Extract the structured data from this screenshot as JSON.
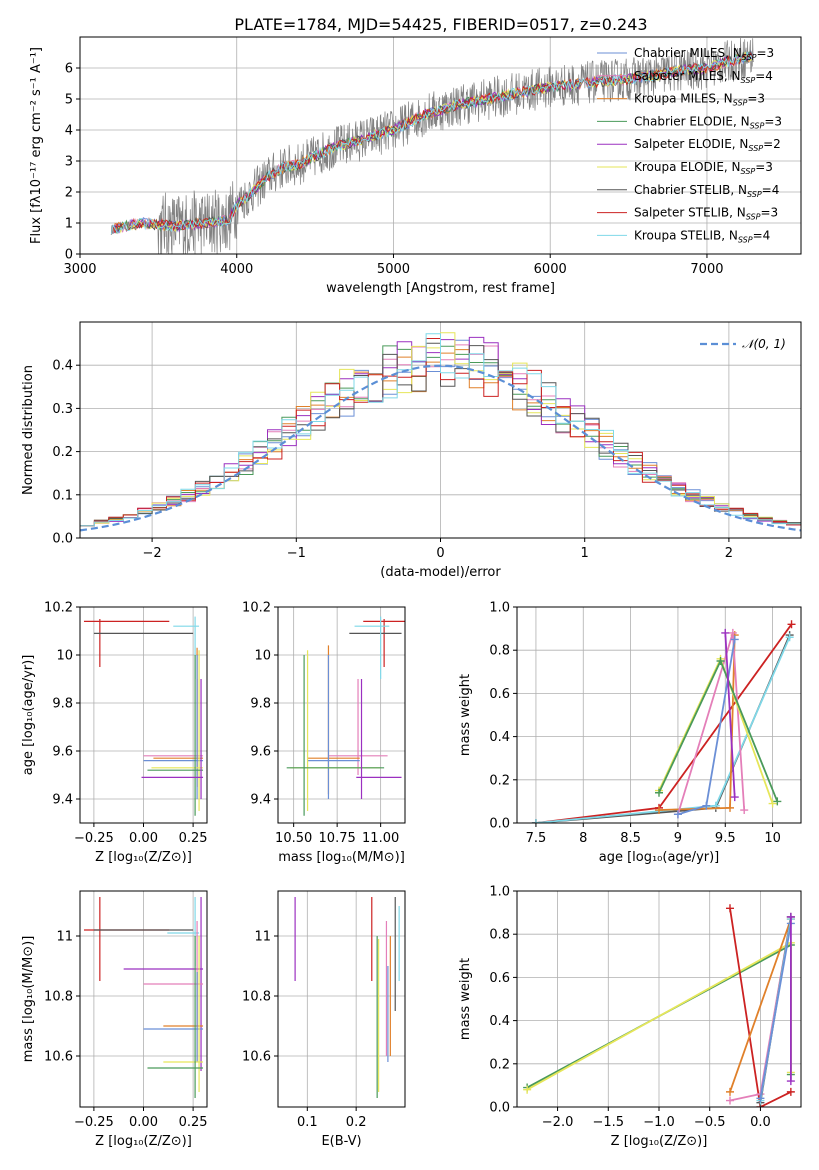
{
  "colors": {
    "chabrier_miles": "#6b8fd6",
    "salpeter_miles": "#e47fb9",
    "kroupa_miles": "#e0802a",
    "chabrier_elodie": "#4a9a5a",
    "salpeter_elodie": "#9b30c0",
    "kroupa_elodie": "#e6e65a",
    "chabrier_stelib": "#555555",
    "salpeter_stelib": "#cc2222",
    "kroupa_stelib": "#7fd8e8",
    "observed": "#808080",
    "normal": "#5b8fd6",
    "grid": "#b0b0b0"
  },
  "chart_data": [
    {
      "type": "line",
      "title": "PLATE=1784, MJD=54425, FIBERID=0517, z=0.243",
      "xlabel": "wavelength [Angstrom, rest frame]",
      "ylabel": "Flux [fλ10⁻¹⁷ erg cm⁻² s⁻¹ A⁻¹]",
      "xlim": [
        3000,
        7600
      ],
      "ylim": [
        0,
        7
      ],
      "xticks": [
        3000,
        4000,
        5000,
        6000,
        7000
      ],
      "yticks": [
        0,
        1,
        2,
        3,
        4,
        5,
        6
      ],
      "legend_position": "right",
      "series": [
        {
          "name": "Chabrier MILES, N",
          "sub": "SSP",
          "suffix": "=3",
          "color_key": "chabrier_miles"
        },
        {
          "name": "Salpeter MILES, N",
          "sub": "SSP",
          "suffix": "=4",
          "color_key": "salpeter_miles"
        },
        {
          "name": "Kroupa MILES, N",
          "sub": "SSP",
          "suffix": "=3",
          "color_key": "kroupa_miles"
        },
        {
          "name": "Chabrier ELODIE, N",
          "sub": "SSP",
          "suffix": "=3",
          "color_key": "chabrier_elodie"
        },
        {
          "name": "Salpeter ELODIE, N",
          "sub": "SSP",
          "suffix": "=2",
          "color_key": "salpeter_elodie"
        },
        {
          "name": "Kroupa ELODIE, N",
          "sub": "SSP",
          "suffix": "=3",
          "color_key": "kroupa_elodie"
        },
        {
          "name": "Chabrier STELIB, N",
          "sub": "SSP",
          "suffix": "=4",
          "color_key": "chabrier_stelib"
        },
        {
          "name": "Salpeter STELIB, N",
          "sub": "SSP",
          "suffix": "=3",
          "color_key": "salpeter_stelib"
        },
        {
          "name": "Kroupa STELIB, N",
          "sub": "SSP",
          "suffix": "=4",
          "color_key": "kroupa_stelib"
        }
      ],
      "continuum_model": {
        "x": [
          3200,
          3400,
          3600,
          3800,
          3950,
          4000,
          4100,
          4200,
          4300,
          4400,
          4600,
          4800,
          5000,
          5200,
          5400,
          5600,
          5800,
          6000,
          6200,
          6400,
          6600,
          6800,
          7000,
          7200,
          7300
        ],
        "y": [
          0.8,
          1.0,
          0.9,
          1.0,
          1.1,
          1.6,
          2.0,
          2.5,
          2.8,
          2.9,
          3.4,
          3.7,
          4.0,
          4.5,
          4.8,
          5.0,
          5.2,
          5.4,
          5.5,
          5.6,
          5.7,
          5.9,
          6.0,
          6.3,
          6.4
        ]
      }
    },
    {
      "type": "histogram",
      "xlabel": "(data-model)/error",
      "ylabel": "Normed distribution",
      "xlim": [
        -2.5,
        2.5
      ],
      "ylim": [
        0,
        0.5
      ],
      "xticks": [
        -2,
        -1,
        0,
        1,
        2
      ],
      "yticks": [
        0.0,
        0.1,
        0.2,
        0.3,
        0.4
      ],
      "bin_width": 0.1,
      "reference_curve": {
        "label": "𝒩(0, 1)",
        "mean": 0,
        "sigma": 1,
        "style": "dashed"
      },
      "legend_position": "top-right"
    },
    {
      "type": "errorbar",
      "xlabel": "Z [log₁₀(Z/Z⊙)]",
      "ylabel": "age [log₁₀(age/yr)]",
      "xlim": [
        -0.32,
        0.32
      ],
      "ylim": [
        9.3,
        10.2
      ],
      "xticks": [
        -0.25,
        0.0,
        0.25
      ],
      "xtick_labels": [
        "−0.25",
        "0.00",
        "0.25"
      ],
      "yticks": [
        9.4,
        9.6,
        9.8,
        10.0,
        10.2
      ],
      "points": [
        {
          "key": "salpeter_stelib",
          "x": -0.22,
          "y": 10.14,
          "xlo": -0.3,
          "xhi": 0.13,
          "ylo": 9.95,
          "yhi": 10.15
        },
        {
          "key": "chabrier_stelib",
          "x": -0.22,
          "y": 10.09,
          "xlo": -0.25,
          "xhi": 0.25,
          "ylo": 10.09,
          "yhi": 10.09
        },
        {
          "key": "kroupa_stelib",
          "x": 0.26,
          "y": 10.12,
          "xlo": 0.15,
          "xhi": 0.28,
          "ylo": 9.9,
          "yhi": 10.16
        },
        {
          "key": "salpeter_miles",
          "x": 0.27,
          "y": 9.58,
          "xlo": 0.0,
          "xhi": 0.3,
          "ylo": 9.5,
          "yhi": 9.9
        },
        {
          "key": "kroupa_miles",
          "x": 0.27,
          "y": 9.57,
          "xlo": 0.05,
          "xhi": 0.3,
          "ylo": 9.45,
          "yhi": 10.03
        },
        {
          "key": "chabrier_miles",
          "x": 0.27,
          "y": 9.56,
          "xlo": 0.0,
          "xhi": 0.3,
          "ylo": 9.4,
          "yhi": 10.0
        },
        {
          "key": "kroupa_elodie",
          "x": 0.28,
          "y": 9.53,
          "xlo": 0.04,
          "xhi": 0.3,
          "ylo": 9.35,
          "yhi": 10.02
        },
        {
          "key": "chabrier_elodie",
          "x": 0.26,
          "y": 9.52,
          "xlo": 0.02,
          "xhi": 0.3,
          "ylo": 9.33,
          "yhi": 10.0
        },
        {
          "key": "salpeter_elodie",
          "x": 0.29,
          "y": 9.49,
          "xlo": -0.01,
          "xhi": 0.3,
          "ylo": 9.4,
          "yhi": 9.9
        }
      ]
    },
    {
      "type": "errorbar",
      "xlabel": "mass [log₁₀(M/M⊙)]",
      "ylabel": "",
      "xlim": [
        10.41,
        11.14
      ],
      "ylim": [
        9.3,
        10.2
      ],
      "xticks": [
        10.5,
        10.75,
        11.0
      ],
      "xtick_labels": [
        "10.50",
        "10.75",
        "11.00"
      ],
      "yticks": [
        9.4,
        9.6,
        9.8,
        10.0,
        10.2
      ],
      "points": [
        {
          "key": "salpeter_stelib",
          "x": 11.02,
          "y": 10.14,
          "xlo": 10.9,
          "xhi": 11.14,
          "ylo": 9.95,
          "yhi": 10.15
        },
        {
          "key": "chabrier_stelib",
          "x": 11.01,
          "y": 10.09,
          "xlo": 10.82,
          "xhi": 11.12,
          "ylo": 10.09,
          "yhi": 10.09
        },
        {
          "key": "kroupa_stelib",
          "x": 11.0,
          "y": 10.12,
          "xlo": 10.85,
          "xhi": 11.05,
          "ylo": 9.9,
          "yhi": 10.16
        },
        {
          "key": "salpeter_miles",
          "x": 10.87,
          "y": 9.58,
          "xlo": 10.7,
          "xhi": 11.04,
          "ylo": 9.5,
          "yhi": 9.9
        },
        {
          "key": "kroupa_miles",
          "x": 10.7,
          "y": 9.57,
          "xlo": 10.58,
          "xhi": 10.88,
          "ylo": 9.42,
          "yhi": 10.04
        },
        {
          "key": "chabrier_miles",
          "x": 10.7,
          "y": 9.56,
          "xlo": 10.58,
          "xhi": 10.88,
          "ylo": 9.4,
          "yhi": 10.0
        },
        {
          "key": "kroupa_elodie",
          "x": 10.58,
          "y": 9.53,
          "xlo": 10.48,
          "xhi": 11.0,
          "ylo": 9.35,
          "yhi": 10.02
        },
        {
          "key": "chabrier_elodie",
          "x": 10.56,
          "y": 9.53,
          "xlo": 10.46,
          "xhi": 11.02,
          "ylo": 9.33,
          "yhi": 10.0
        },
        {
          "key": "salpeter_elodie",
          "x": 10.89,
          "y": 9.49,
          "xlo": 10.86,
          "xhi": 11.12,
          "ylo": 9.4,
          "yhi": 9.9
        }
      ]
    },
    {
      "type": "line",
      "xlabel": "age [log₁₀(age/yr)]",
      "ylabel": "mass weight",
      "xlim": [
        7.3,
        10.3
      ],
      "ylim": [
        0,
        1
      ],
      "xticks": [
        7.5,
        8.0,
        8.5,
        9.0,
        9.5,
        10.0
      ],
      "yticks": [
        0.0,
        0.2,
        0.4,
        0.6,
        0.8,
        1.0
      ],
      "series": [
        {
          "key": "salpeter_stelib",
          "x": [
            7.5,
            8.8,
            10.2
          ],
          "y": [
            0.0,
            0.07,
            0.92
          ]
        },
        {
          "key": "chabrier_stelib",
          "x": [
            7.5,
            9.4,
            10.18
          ],
          "y": [
            0.0,
            0.07,
            0.87
          ]
        },
        {
          "key": "kroupa_stelib",
          "x": [
            7.5,
            9.4,
            10.18
          ],
          "y": [
            0.0,
            0.08,
            0.86
          ]
        },
        {
          "key": "kroupa_miles",
          "x": [
            8.8,
            9.55,
            9.6
          ],
          "y": [
            0.06,
            0.07,
            0.87
          ]
        },
        {
          "key": "salpeter_miles",
          "x": [
            9.0,
            9.58,
            9.7
          ],
          "y": [
            0.04,
            0.88,
            0.06
          ]
        },
        {
          "key": "chabrier_miles",
          "x": [
            9.0,
            9.3,
            9.6
          ],
          "y": [
            0.04,
            0.08,
            0.85
          ]
        },
        {
          "key": "kroupa_elodie",
          "x": [
            8.8,
            9.45,
            10.0
          ],
          "y": [
            0.15,
            0.76,
            0.09
          ]
        },
        {
          "key": "chabrier_elodie",
          "x": [
            8.8,
            9.45,
            10.05
          ],
          "y": [
            0.14,
            0.75,
            0.1
          ]
        },
        {
          "key": "salpeter_elodie",
          "x": [
            9.5,
            9.6
          ],
          "y": [
            0.88,
            0.12
          ]
        }
      ]
    },
    {
      "type": "errorbar",
      "xlabel": "Z [log₁₀(Z/Z⊙)]",
      "ylabel": "mass [log₁₀(M/M⊙)]",
      "xlim": [
        -0.32,
        0.32
      ],
      "ylim": [
        10.43,
        11.15
      ],
      "xticks": [
        -0.25,
        0.0,
        0.25
      ],
      "xtick_labels": [
        "−0.25",
        "0.00",
        "0.25"
      ],
      "yticks": [
        10.6,
        10.8,
        11.0
      ],
      "points": [
        {
          "key": "salpeter_stelib",
          "x": -0.22,
          "y": 11.02,
          "xlo": -0.3,
          "xhi": 0.13,
          "ylo": 10.85,
          "yhi": 11.13
        },
        {
          "key": "chabrier_stelib",
          "x": -0.25,
          "y": 11.02,
          "xlo": -0.25,
          "xhi": 0.25,
          "ylo": 11.02,
          "yhi": 11.02
        },
        {
          "key": "kroupa_stelib",
          "x": 0.26,
          "y": 11.01,
          "xlo": 0.12,
          "xhi": 0.28,
          "ylo": 10.9,
          "yhi": 11.13
        },
        {
          "key": "salpeter_elodie",
          "x": 0.29,
          "y": 10.89,
          "xlo": -0.1,
          "xhi": 0.3,
          "ylo": 10.55,
          "yhi": 11.13
        },
        {
          "key": "salpeter_miles",
          "x": 0.27,
          "y": 10.84,
          "xlo": 0.0,
          "xhi": 0.3,
          "ylo": 10.7,
          "yhi": 11.05
        },
        {
          "key": "kroupa_miles",
          "x": 0.27,
          "y": 10.7,
          "xlo": 0.1,
          "xhi": 0.3,
          "ylo": 10.58,
          "yhi": 10.88
        },
        {
          "key": "chabrier_miles",
          "x": 0.27,
          "y": 10.69,
          "xlo": 0.0,
          "xhi": 0.3,
          "ylo": 10.58,
          "yhi": 10.88
        },
        {
          "key": "kroupa_elodie",
          "x": 0.28,
          "y": 10.58,
          "xlo": 0.1,
          "xhi": 0.3,
          "ylo": 10.48,
          "yhi": 11.0
        },
        {
          "key": "chabrier_elodie",
          "x": 0.26,
          "y": 10.56,
          "xlo": 0.02,
          "xhi": 0.3,
          "ylo": 10.46,
          "yhi": 11.0
        }
      ]
    },
    {
      "type": "errorbar",
      "xlabel": "E(B-V)",
      "ylabel": "",
      "xlim": [
        0.04,
        0.3
      ],
      "ylim": [
        10.43,
        11.15
      ],
      "xticks": [
        0.1,
        0.2
      ],
      "xtick_labels": [
        "0.1",
        "0.2"
      ],
      "yticks": [
        10.6,
        10.8,
        11.0
      ],
      "points": [
        {
          "key": "salpeter_elodie",
          "x": 0.075,
          "y": 11.0,
          "ylo": 10.85,
          "yhi": 11.13
        },
        {
          "key": "salpeter_stelib",
          "x": 0.232,
          "y": 11.0,
          "ylo": 10.85,
          "yhi": 11.13
        },
        {
          "key": "chabrier_elodie",
          "x": 0.243,
          "y": 10.8,
          "ylo": 10.46,
          "yhi": 11.0
        },
        {
          "key": "kroupa_elodie",
          "x": 0.246,
          "y": 10.8,
          "ylo": 10.48,
          "yhi": 10.99
        },
        {
          "key": "salpeter_miles",
          "x": 0.262,
          "y": 10.84,
          "ylo": 10.6,
          "yhi": 11.05
        },
        {
          "key": "chabrier_miles",
          "x": 0.265,
          "y": 10.75,
          "ylo": 10.58,
          "yhi": 10.9
        },
        {
          "key": "kroupa_miles",
          "x": 0.27,
          "y": 10.8,
          "ylo": 10.6,
          "yhi": 11.0
        },
        {
          "key": "chabrier_stelib",
          "x": 0.28,
          "y": 10.98,
          "ylo": 10.75,
          "yhi": 11.13
        },
        {
          "key": "kroupa_stelib",
          "x": 0.288,
          "y": 11.0,
          "ylo": 10.85,
          "yhi": 11.1
        }
      ]
    },
    {
      "type": "line",
      "xlabel": "Z [log₁₀(Z/Z⊙)]",
      "ylabel": "mass weight",
      "xlim": [
        -2.4,
        0.4
      ],
      "ylim": [
        0,
        1
      ],
      "xticks": [
        -2.0,
        -1.5,
        -1.0,
        -0.5,
        0.0
      ],
      "xtick_labels": [
        "−2.0",
        "−1.5",
        "−1.0",
        "−0.5",
        "0.0"
      ],
      "yticks": [
        0.0,
        0.2,
        0.4,
        0.6,
        0.8,
        1.0
      ],
      "series": [
        {
          "key": "chabrier_elodie",
          "x": [
            -2.3,
            0.3,
            0.3
          ],
          "y": [
            0.09,
            0.75,
            0.15
          ]
        },
        {
          "key": "kroupa_elodie",
          "x": [
            -2.3,
            0.3,
            0.3
          ],
          "y": [
            0.08,
            0.76,
            0.16
          ]
        },
        {
          "key": "salpeter_stelib",
          "x": [
            -0.3,
            0.0,
            0.3
          ],
          "y": [
            0.92,
            0.0,
            0.07
          ]
        },
        {
          "key": "kroupa_miles",
          "x": [
            -0.3,
            0.3
          ],
          "y": [
            0.07,
            0.87
          ]
        },
        {
          "key": "salpeter_miles",
          "x": [
            -0.3,
            0.0,
            0.3
          ],
          "y": [
            0.03,
            0.06,
            0.88
          ]
        },
        {
          "key": "chabrier_stelib",
          "x": [
            0.0,
            0.3
          ],
          "y": [
            0.02,
            0.88
          ]
        },
        {
          "key": "kroupa_stelib",
          "x": [
            0.0,
            0.3
          ],
          "y": [
            0.03,
            0.87
          ]
        },
        {
          "key": "chabrier_miles",
          "x": [
            0.0,
            0.3
          ],
          "y": [
            0.04,
            0.85
          ]
        },
        {
          "key": "salpeter_elodie",
          "x": [
            0.3,
            0.3
          ],
          "y": [
            0.88,
            0.12
          ]
        }
      ]
    }
  ]
}
